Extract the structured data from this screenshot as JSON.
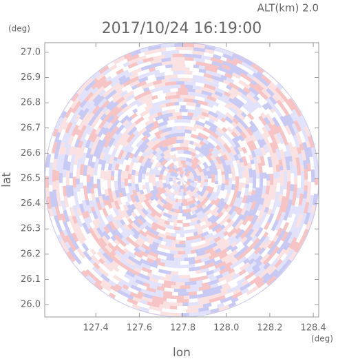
{
  "chart_data": {
    "type": "radar-scan",
    "title": "2017/10/24 16:19:00",
    "annotation": "ALT(km) 2.0",
    "x_label": "lon",
    "y_label": "lat",
    "x_unit": "(deg)",
    "y_unit": "(deg)",
    "xlim": [
      127.165,
      128.425
    ],
    "ylim": [
      25.951,
      27.038
    ],
    "xticks": [
      127.4,
      127.6,
      127.8,
      {
        "value": 128,
        "label": "128.0"
      },
      128.2,
      128.4
    ],
    "yticks": [
      {
        "value": 26,
        "label": "26.0"
      },
      26.1,
      26.2,
      26.3,
      26.4,
      26.5,
      26.6,
      26.7,
      26.8,
      26.9,
      {
        "value": 27,
        "label": "27.0"
      }
    ]
  }
}
